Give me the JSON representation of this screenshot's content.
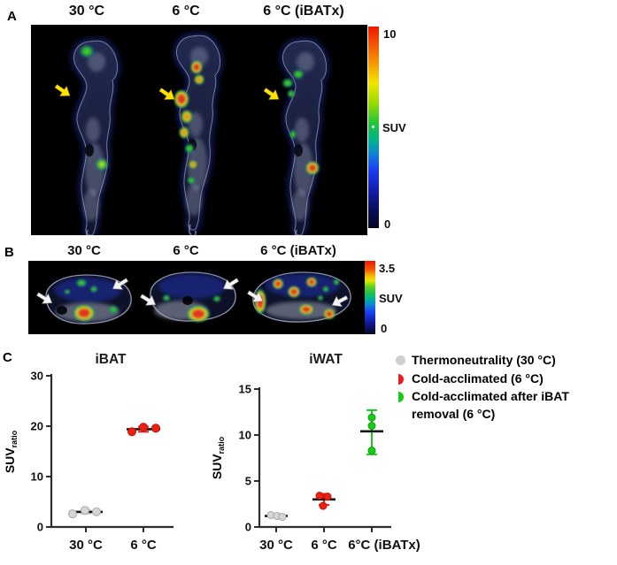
{
  "panelA": {
    "label": "A",
    "col_labels": [
      "30 °C",
      "6 °C",
      "6 °C (iBATx)"
    ],
    "colorbar": {
      "top_label": "10",
      "mid_label": "SUV",
      "bottom_label": "0",
      "stops": [
        [
          0,
          "#ed1900"
        ],
        [
          9,
          "#f25600"
        ],
        [
          19,
          "#f79e00"
        ],
        [
          28,
          "#f2e400"
        ],
        [
          38,
          "#96dc00"
        ],
        [
          48,
          "#25c33c"
        ],
        [
          56,
          "#00b487"
        ],
        [
          63,
          "#0e85d4"
        ],
        [
          71,
          "#1a3ef0"
        ],
        [
          82,
          "#131ba6"
        ],
        [
          92,
          "#0a0c52"
        ],
        [
          100,
          "#06081f"
        ]
      ]
    }
  },
  "panelB": {
    "label": "B",
    "col_labels": [
      "30 °C",
      "6 °C",
      "6 °C (iBATx)"
    ],
    "colorbar": {
      "top_label": "3.5",
      "mid_label": "SUV",
      "bottom_label": "0",
      "stops": [
        [
          0,
          "#ed1900"
        ],
        [
          12,
          "#f25600"
        ],
        [
          20,
          "#f7b400"
        ],
        [
          27,
          "#e8e800"
        ],
        [
          34,
          "#6ed41e"
        ],
        [
          44,
          "#1fc04a"
        ],
        [
          52,
          "#00b295"
        ],
        [
          60,
          "#0e85d4"
        ],
        [
          70,
          "#1a3ef0"
        ],
        [
          84,
          "#12199c"
        ],
        [
          100,
          "#06081f"
        ]
      ]
    }
  },
  "panelC": {
    "label": "C",
    "legend": [
      {
        "label": "Thermoneutrality (30 °C)",
        "color": "#cfcfcf",
        "shape": "circle"
      },
      {
        "label": "Cold-acclimated (6 °C)",
        "color": "#ed1c16",
        "shape": "half"
      },
      {
        "label": "Cold-acclimated after iBAT removal (6 °C)",
        "color": "#17cb17",
        "shape": "half"
      }
    ]
  },
  "chart_data": [
    {
      "type": "scatter",
      "title": "iBAT",
      "ylabel": "SUVratio",
      "ylabel_main": "SUV",
      "ylabel_sub": "ratio",
      "ylim": [
        0,
        30
      ],
      "yticks": [
        0,
        10,
        20,
        30
      ],
      "categories": [
        "30 °C",
        "6 °C"
      ],
      "grid": false,
      "groups": [
        {
          "category": "30 °C",
          "name": "Thermoneutrality (30 °C)",
          "color": "#d6d6d6",
          "stroke": "#a8a8a8",
          "points": [
            2.6,
            3.3,
            3.0
          ],
          "mean": 3.0,
          "err_low": 2.6,
          "err_high": 3.4,
          "x_offsets": [
            -15,
            -1,
            12
          ]
        },
        {
          "category": "6 °C",
          "name": "Cold-acclimated (6 °C)",
          "color": "#ee2012",
          "stroke": "#b81407",
          "points": [
            18.9,
            19.8,
            19.6
          ],
          "mean": 19.4,
          "err_low": 18.9,
          "err_high": 19.9,
          "x_offsets": [
            -13,
            0,
            14
          ]
        }
      ]
    },
    {
      "type": "scatter",
      "title": "iWAT",
      "ylabel": "SUVratio",
      "ylabel_main": "SUV",
      "ylabel_sub": "ratio",
      "ylim": [
        0,
        15
      ],
      "yticks": [
        0,
        5,
        10,
        15
      ],
      "categories": [
        "30 °C",
        "6 °C",
        "6°C (iBATx)"
      ],
      "grid": false,
      "groups": [
        {
          "category": "30 °C",
          "name": "Thermoneutrality (30 °C)",
          "color": "#d6d6d6",
          "stroke": "#a8a8a8",
          "points": [
            1.3,
            1.2,
            1.1
          ],
          "mean": 1.2,
          "err_low": 1.0,
          "err_high": 1.4,
          "x_offsets": [
            -6,
            1,
            7
          ]
        },
        {
          "category": "6 °C",
          "name": "Cold-acclimated (6 °C)",
          "color": "#ee2012",
          "stroke": "#b81407",
          "points": [
            3.4,
            3.3,
            2.3
          ],
          "mean": 3.0,
          "err_low": 2.4,
          "err_high": 3.6,
          "x_offsets": [
            -5,
            4,
            -1
          ]
        },
        {
          "category": "6°C (iBATx)",
          "name": "Cold-acclimated after iBAT removal (6 °C)",
          "color": "#17cb17",
          "stroke": "#0f9e0f",
          "points": [
            11.9,
            11.0,
            8.3
          ],
          "mean": 10.4,
          "err_low": 7.9,
          "err_high": 12.7,
          "x_offsets": [
            0,
            0,
            0
          ]
        }
      ]
    }
  ]
}
